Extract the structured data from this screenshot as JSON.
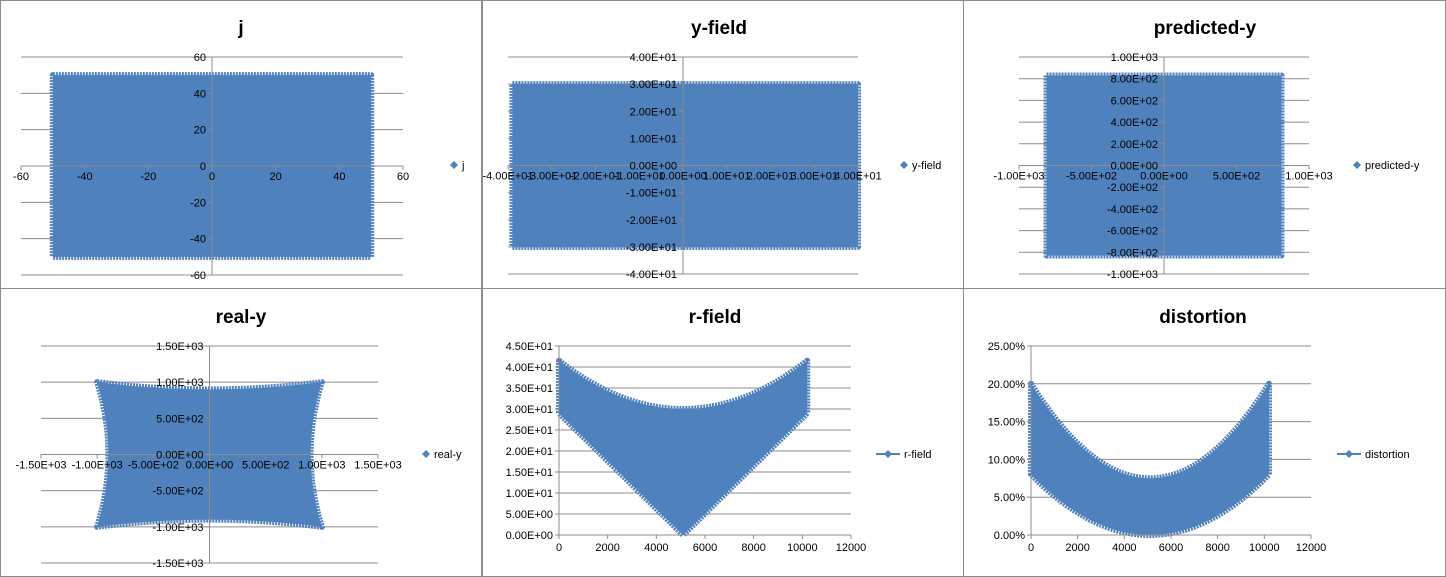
{
  "chart_data": [
    {
      "id": "j",
      "type": "scatter",
      "title": "j",
      "shape": "rect",
      "series": [
        {
          "name": "j"
        }
      ],
      "xlim": [
        -60,
        60
      ],
      "ylim": [
        -60,
        60
      ],
      "xticks": [
        -60,
        -40,
        -20,
        0,
        20,
        40,
        60
      ],
      "xtick_labels": [
        "-60",
        "-40",
        "-20",
        "0",
        "20",
        "40",
        "60"
      ],
      "yticks": [
        60,
        40,
        20,
        0,
        -20,
        -40,
        -60
      ],
      "ytick_labels": [
        "60",
        "40",
        "20",
        "0",
        "-20",
        "-40",
        "-60"
      ],
      "data_extent": {
        "x": [
          -50,
          50
        ],
        "y": [
          -50,
          50
        ]
      },
      "grid": true,
      "legend": "right",
      "color": "#4F81BD"
    },
    {
      "id": "y-field",
      "type": "scatter",
      "title": "y-field",
      "shape": "rect",
      "series": [
        {
          "name": "y-field"
        }
      ],
      "xlim": [
        -40,
        40
      ],
      "ylim": [
        -40,
        40
      ],
      "xticks": [
        -40,
        -30,
        -20,
        -10,
        0,
        10,
        20,
        30,
        40
      ],
      "xtick_labels": [
        "-4.00E+01",
        "-3.00E+01",
        "-2.00E+01",
        "-1.00E+01",
        "0.00E+00",
        "1.00E+01",
        "2.00E+01",
        "3.00E+01",
        "4.00E+01"
      ],
      "yticks": [
        40,
        30,
        20,
        10,
        0,
        -10,
        -20,
        -30,
        -40
      ],
      "ytick_labels": [
        "4.00E+01",
        "3.00E+01",
        "2.00E+01",
        "1.00E+01",
        "0.00E+00",
        "-1.00E+01",
        "-2.00E+01",
        "-3.00E+01",
        "-4.00E+01"
      ],
      "data_extent": {
        "x": [
          -39,
          40
        ],
        "y": [
          -30,
          30
        ]
      },
      "grid": true,
      "legend": "right",
      "color": "#4F81BD"
    },
    {
      "id": "predicted-y",
      "type": "scatter",
      "title": "predicted-y",
      "shape": "rect",
      "series": [
        {
          "name": "predicted-y"
        }
      ],
      "xlim": [
        -1000,
        1000
      ],
      "ylim": [
        -1000,
        1000
      ],
      "xticks": [
        -1000,
        -500,
        0,
        500,
        1000
      ],
      "xtick_labels": [
        "-1.00E+03",
        "-5.00E+02",
        "0.00E+00",
        "5.00E+02",
        "1.00E+03"
      ],
      "yticks": [
        1000,
        800,
        600,
        400,
        200,
        0,
        -200,
        -400,
        -600,
        -800,
        -1000
      ],
      "ytick_labels": [
        "1.00E+03",
        "8.00E+02",
        "6.00E+02",
        "4.00E+02",
        "2.00E+02",
        "0.00E+00",
        "-2.00E+02",
        "-4.00E+02",
        "-6.00E+02",
        "-8.00E+02",
        "-1.00E+03"
      ],
      "data_extent": {
        "x": [
          -810,
          810
        ],
        "y": [
          -830,
          830
        ]
      },
      "grid": true,
      "legend": "right",
      "color": "#4F81BD"
    },
    {
      "id": "real-y",
      "type": "scatter",
      "title": "real-y",
      "shape": "cushion",
      "series": [
        {
          "name": "real-y"
        }
      ],
      "xlim": [
        -1500,
        1500
      ],
      "ylim": [
        -1500,
        1500
      ],
      "xticks": [
        -1500,
        -1000,
        -500,
        0,
        500,
        1000,
        1500
      ],
      "xtick_labels": [
        "-1.50E+03",
        "-1.00E+03",
        "-5.00E+02",
        "0.00E+00",
        "5.00E+02",
        "1.00E+03",
        "1.50E+03"
      ],
      "yticks": [
        1500,
        1000,
        500,
        0,
        -500,
        -1000,
        -1500
      ],
      "ytick_labels": [
        "1.50E+03",
        "1.00E+03",
        "5.00E+02",
        "0.00E+00",
        "-5.00E+02",
        "-1.00E+03",
        "-1.50E+03"
      ],
      "data_extent": {
        "x": [
          -1000,
          1000
        ],
        "y": [
          -1000,
          1000
        ],
        "inset": 0.1
      },
      "grid": true,
      "legend": "right",
      "color": "#4F81BD"
    },
    {
      "id": "r-field",
      "type": "scatter",
      "title": "r-field",
      "shape": "band",
      "series": [
        {
          "name": "r-field"
        }
      ],
      "xlim": [
        0,
        12000
      ],
      "ylim": [
        0,
        45
      ],
      "xticks": [
        0,
        2000,
        4000,
        6000,
        8000,
        10000,
        12000
      ],
      "xtick_labels": [
        "0",
        "2000",
        "4000",
        "6000",
        "8000",
        "10000",
        "12000"
      ],
      "yticks": [
        45,
        40,
        35,
        30,
        25,
        20,
        15,
        10,
        5,
        0
      ],
      "ytick_labels": [
        "4.50E+01",
        "4.00E+01",
        "3.50E+01",
        "3.00E+01",
        "2.50E+01",
        "2.00E+01",
        "1.50E+01",
        "1.00E+01",
        "5.00E+00",
        "0.00E+00"
      ],
      "band": {
        "x": [
          0,
          10200
        ],
        "upper": [
          [
            0,
            41.5
          ],
          [
            5100,
            30
          ],
          [
            10200,
            41.5
          ]
        ],
        "lower": [
          [
            0,
            29
          ],
          [
            5100,
            0
          ],
          [
            10200,
            29
          ]
        ]
      },
      "grid": true,
      "legend": "right",
      "color": "#4F81BD"
    },
    {
      "id": "distortion",
      "type": "scatter",
      "title": "distortion",
      "shape": "band",
      "series": [
        {
          "name": "distortion"
        }
      ],
      "xlim": [
        0,
        12000
      ],
      "ylim": [
        0,
        0.25
      ],
      "xticks": [
        0,
        2000,
        4000,
        6000,
        8000,
        10000,
        12000
      ],
      "xtick_labels": [
        "0",
        "2000",
        "4000",
        "6000",
        "8000",
        "10000",
        "12000"
      ],
      "yticks": [
        0.25,
        0.2,
        0.15,
        0.1,
        0.05,
        0
      ],
      "ytick_labels": [
        "25.00%",
        "20.00%",
        "15.00%",
        "10.00%",
        "5.00%",
        "0.00%"
      ],
      "band": {
        "x": [
          0,
          10200
        ],
        "upper": [
          [
            0,
            0.2
          ],
          [
            5100,
            0.075
          ],
          [
            10200,
            0.2
          ]
        ],
        "lower": [
          [
            0,
            0.08
          ],
          [
            5100,
            0
          ],
          [
            10200,
            0.08
          ]
        ]
      },
      "grid": true,
      "legend": "right",
      "color": "#4F81BD"
    }
  ]
}
